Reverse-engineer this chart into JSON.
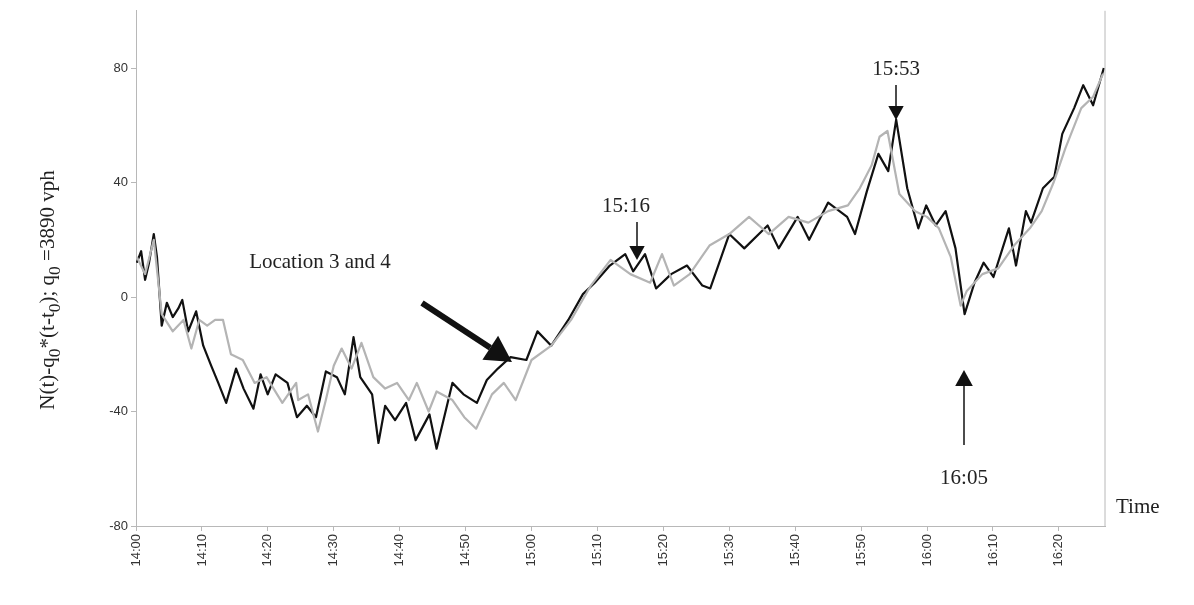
{
  "chart_data": {
    "type": "line",
    "xlabel": "Time",
    "ylabel": "N(t)-q$_{0}$*(t-t$_{0}$); q$_{0}$ =3890 vph",
    "xlim": [
      14,
      16.45
    ],
    "ylim": [
      -80,
      100
    ],
    "xticks": [
      {
        "value": 14,
        "label": "14:00"
      },
      {
        "value": 14.1667,
        "label": "14:10"
      },
      {
        "value": 14.3333,
        "label": "14:20"
      },
      {
        "value": 14.5,
        "label": "14:30"
      },
      {
        "value": 14.6667,
        "label": "14:40"
      },
      {
        "value": 14.8333,
        "label": "14:50"
      },
      {
        "value": 15,
        "label": "15:00"
      },
      {
        "value": 15.1667,
        "label": "15:10"
      },
      {
        "value": 15.3333,
        "label": "15:20"
      },
      {
        "value": 15.5,
        "label": "15:30"
      },
      {
        "value": 15.6667,
        "label": "15:40"
      },
      {
        "value": 15.8333,
        "label": "15:50"
      },
      {
        "value": 16,
        "label": "16:00"
      },
      {
        "value": 16.1667,
        "label": "16:10"
      },
      {
        "value": 16.3333,
        "label": "16:20"
      }
    ],
    "yticks": [
      -80,
      -40,
      0,
      40,
      80
    ],
    "marker": "none",
    "series": [
      {
        "color": "#b4b4b4",
        "x": [
          14.002,
          14.023,
          14.045,
          14.065,
          14.093,
          14.12,
          14.14,
          14.16,
          14.18,
          14.2,
          14.22,
          14.24,
          14.27,
          14.3,
          14.33,
          14.37,
          14.405,
          14.41,
          14.435,
          14.46,
          14.48,
          14.5,
          14.52,
          14.545,
          14.57,
          14.6,
          14.63,
          14.66,
          14.69,
          14.71,
          14.74,
          14.76,
          14.8,
          14.83,
          14.86,
          14.9,
          14.93,
          14.96,
          15.0,
          15.05,
          15.1,
          15.15,
          15.2,
          15.25,
          15.3,
          15.33,
          15.36,
          15.4,
          15.45,
          15.5,
          15.55,
          15.6,
          15.65,
          15.7,
          15.75,
          15.8,
          15.83,
          15.86,
          15.88,
          15.9,
          15.93,
          15.97,
          16.0,
          16.03,
          16.06,
          16.085,
          16.1,
          16.14,
          16.18,
          16.22,
          16.26,
          16.29,
          16.32,
          16.35,
          16.39,
          16.42,
          16.445
        ],
        "values": [
          14,
          8,
          20,
          -6,
          -12,
          -8,
          -18,
          -8,
          -10,
          -8,
          -8,
          -20,
          -22,
          -30,
          -28,
          -37,
          -30,
          -36,
          -34,
          -47,
          -36,
          -24,
          -18,
          -25,
          -16,
          -28,
          -32,
          -30,
          -36,
          -30,
          -40,
          -33,
          -36,
          -42,
          -46,
          -34,
          -30,
          -36,
          -22,
          -17,
          -8,
          4,
          13,
          8,
          5,
          15,
          4,
          8,
          18,
          22,
          28,
          22,
          28,
          26,
          30,
          32,
          38,
          46,
          56,
          58,
          36,
          30,
          28,
          24,
          14,
          -3,
          2,
          8,
          10,
          18,
          24,
          30,
          40,
          52,
          66,
          70,
          78
        ]
      },
      {
        "color": "#111111",
        "x": [
          14.002,
          14.013,
          14.023,
          14.033,
          14.045,
          14.053,
          14.065,
          14.078,
          14.093,
          14.107,
          14.117,
          14.132,
          14.152,
          14.17,
          14.19,
          14.208,
          14.228,
          14.253,
          14.272,
          14.297,
          14.315,
          14.333,
          14.353,
          14.383,
          14.407,
          14.432,
          14.455,
          14.48,
          14.508,
          14.528,
          14.55,
          14.567,
          14.597,
          14.613,
          14.63,
          14.655,
          14.683,
          14.707,
          14.742,
          14.76,
          14.8,
          14.828,
          14.862,
          14.887,
          14.915,
          14.947,
          14.987,
          15.015,
          15.05,
          15.093,
          15.13,
          15.16,
          15.198,
          15.237,
          15.257,
          15.287,
          15.315,
          15.353,
          15.393,
          15.432,
          15.452,
          15.5,
          15.538,
          15.597,
          15.625,
          15.673,
          15.702,
          15.75,
          15.798,
          15.818,
          15.848,
          15.877,
          15.902,
          15.922,
          15.95,
          15.978,
          15.998,
          16.022,
          16.047,
          16.072,
          16.095,
          16.12,
          16.143,
          16.168,
          16.207,
          16.225,
          16.25,
          16.263,
          16.293,
          16.322,
          16.342,
          16.372,
          16.395,
          16.42,
          16.447
        ],
        "values": [
          12,
          16,
          6,
          12,
          22,
          14,
          -10,
          -2,
          -7,
          -4,
          -1,
          -12,
          -5,
          -17,
          -24,
          -30,
          -37,
          -25,
          -32,
          -39,
          -27,
          -34,
          -27,
          -30,
          -42,
          -38,
          -42,
          -26,
          -28,
          -34,
          -14,
          -28,
          -34,
          -51,
          -38,
          -43,
          -37,
          -50,
          -41,
          -53,
          -30,
          -34,
          -37,
          -29,
          -25,
          -21,
          -22,
          -12,
          -17,
          -8,
          1,
          5,
          11,
          15,
          9,
          15,
          3,
          8,
          11,
          4,
          3,
          22,
          17,
          25,
          17,
          28,
          20,
          33,
          28,
          22,
          37,
          50,
          44,
          62,
          38,
          24,
          32,
          25,
          30,
          17,
          -6,
          5,
          12,
          7,
          24,
          11,
          30,
          26,
          38,
          42,
          57,
          66,
          74,
          67,
          80
        ]
      }
    ],
    "annotations": [
      "Location 3 and 4",
      {
        "text": "15:16",
        "x": 15.2667,
        "y": 13
      },
      {
        "text": "15:53",
        "x": 15.922,
        "y": 62
      },
      "16:05"
    ]
  }
}
